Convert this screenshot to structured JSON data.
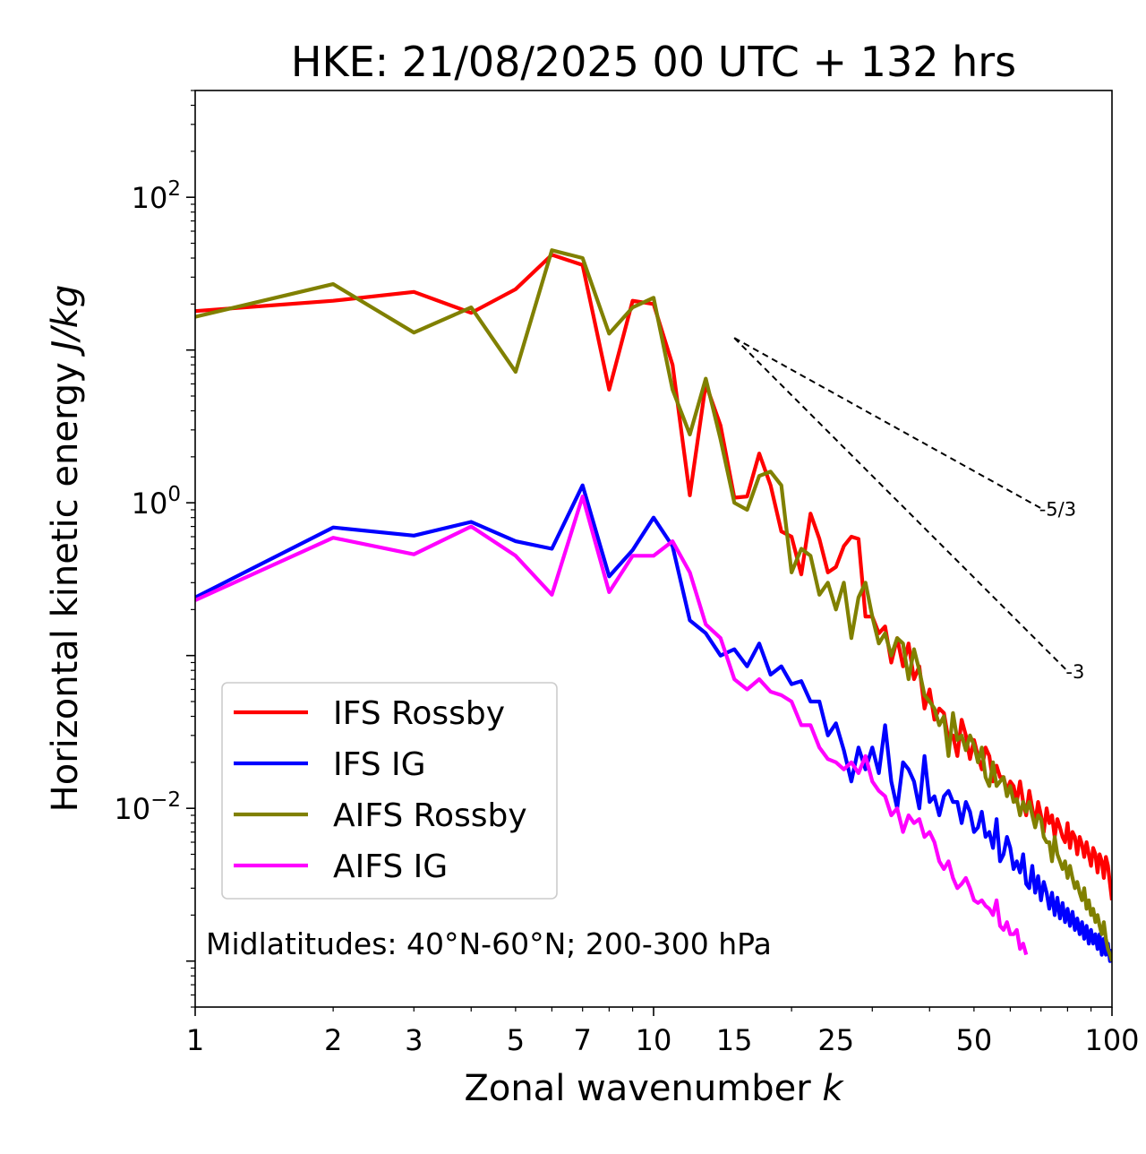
{
  "chart_data": {
    "type": "line",
    "title": "HKE: 21/08/2025 00 UTC + 132 hrs",
    "xlabel": "Zonal wavenumber",
    "xlabel_var": "k",
    "ylabel": "Horizontal kinetic energy",
    "ylabel_unit": "J/kg",
    "xscale": "log",
    "yscale": "log",
    "xlim": [
      1,
      100
    ],
    "ylim": [
      0.0005,
      500
    ],
    "x_ticks": [
      1,
      2,
      3,
      5,
      7,
      10,
      15,
      25,
      50,
      100
    ],
    "x_tick_labels": [
      "1",
      "2",
      "3",
      "5",
      "7",
      "10",
      "15",
      "25",
      "50",
      "100"
    ],
    "y_ticks": [
      {
        "value": 100,
        "base": "10",
        "exp": "2"
      },
      {
        "value": 1,
        "base": "10",
        "exp": "0"
      },
      {
        "value": 0.01,
        "base": "10",
        "exp": "−2"
      }
    ],
    "legend_position": "lower-left",
    "annotation": "Midlatitudes: 40°N-60°N; 200-300 hPa",
    "reference_slopes": [
      {
        "label": "-5/3",
        "slope": -1.6667,
        "x": [
          15,
          70
        ],
        "y0": 12
      },
      {
        "label": "-3",
        "slope": -3,
        "x": [
          15,
          80
        ],
        "y0": 12
      }
    ],
    "series": [
      {
        "name": "IFS Rossby",
        "color": "#ff0000",
        "x": [
          1,
          2,
          3,
          4,
          5,
          6,
          7,
          8,
          9,
          10,
          11,
          12,
          13,
          14,
          15,
          16,
          17,
          18,
          19,
          20,
          21,
          22,
          23,
          24,
          25,
          26,
          27,
          28,
          29,
          30,
          31,
          32,
          33,
          34,
          35,
          36,
          37,
          38,
          39,
          40,
          41,
          42,
          43,
          44,
          45,
          46,
          47,
          48,
          49,
          50,
          51,
          52,
          53,
          54,
          55,
          56,
          57,
          58,
          59,
          60,
          61,
          62,
          63,
          64,
          65,
          66,
          67,
          68,
          69,
          70,
          71,
          72,
          73,
          74,
          75,
          76,
          77,
          78,
          79,
          80,
          81,
          82,
          83,
          84,
          85,
          86,
          87,
          88,
          89,
          90,
          91,
          92,
          93,
          94,
          95,
          96,
          97,
          98,
          99,
          100
        ],
        "values": [
          18,
          21,
          24,
          17.5,
          25,
          42,
          36,
          5.5,
          21,
          20,
          8,
          1.12,
          6,
          3.2,
          1.08,
          1.1,
          2.1,
          1.3,
          0.65,
          0.6,
          0.34,
          0.85,
          0.58,
          0.35,
          0.38,
          0.52,
          0.6,
          0.58,
          0.18,
          0.18,
          0.14,
          0.155,
          0.09,
          0.13,
          0.085,
          0.12,
          0.07,
          0.085,
          0.045,
          0.06,
          0.038,
          0.045,
          0.042,
          0.028,
          0.03,
          0.022,
          0.038,
          0.03,
          0.021,
          0.028,
          0.022,
          0.018,
          0.025,
          0.022,
          0.015,
          0.019,
          0.016,
          0.016,
          0.013,
          0.015,
          0.014,
          0.011,
          0.015,
          0.011,
          0.009,
          0.013,
          0.01,
          0.008,
          0.011,
          0.009,
          0.007,
          0.01,
          0.008,
          0.009,
          0.0065,
          0.0085,
          0.0075,
          0.0065,
          0.006,
          0.008,
          0.0055,
          0.007,
          0.0065,
          0.005,
          0.0065,
          0.0058,
          0.0048,
          0.006,
          0.005,
          0.0042,
          0.0055,
          0.005,
          0.0038,
          0.005,
          0.0045,
          0.0035,
          0.0048,
          0.0042,
          0.0032,
          0.0025
        ]
      },
      {
        "name": "IFS IG",
        "color": "#0000ff",
        "x": [
          1,
          2,
          3,
          4,
          5,
          6,
          7,
          8,
          9,
          10,
          11,
          12,
          13,
          14,
          15,
          16,
          17,
          18,
          19,
          20,
          21,
          22,
          23,
          24,
          25,
          26,
          27,
          28,
          29,
          30,
          31,
          32,
          33,
          34,
          35,
          36,
          37,
          38,
          39,
          40,
          41,
          42,
          43,
          44,
          45,
          46,
          47,
          48,
          49,
          50,
          51,
          52,
          53,
          54,
          55,
          56,
          57,
          58,
          59,
          60,
          61,
          62,
          63,
          64,
          65,
          66,
          67,
          68,
          69,
          70,
          71,
          72,
          73,
          74,
          75,
          76,
          77,
          78,
          79,
          80,
          81,
          82,
          83,
          84,
          85,
          86,
          87,
          88,
          89,
          90,
          91,
          92,
          93,
          94,
          95,
          96,
          97,
          98,
          99,
          100
        ],
        "values": [
          0.24,
          0.69,
          0.61,
          0.75,
          0.56,
          0.5,
          1.3,
          0.33,
          0.49,
          0.8,
          0.52,
          0.17,
          0.14,
          0.1,
          0.11,
          0.085,
          0.12,
          0.075,
          0.085,
          0.065,
          0.068,
          0.05,
          0.05,
          0.03,
          0.036,
          0.024,
          0.015,
          0.025,
          0.018,
          0.025,
          0.017,
          0.035,
          0.015,
          0.01,
          0.02,
          0.018,
          0.015,
          0.01,
          0.022,
          0.011,
          0.012,
          0.009,
          0.012,
          0.013,
          0.011,
          0.011,
          0.008,
          0.011,
          0.0095,
          0.007,
          0.0075,
          0.0095,
          0.0065,
          0.007,
          0.0055,
          0.0085,
          0.0045,
          0.005,
          0.0065,
          0.0055,
          0.004,
          0.0045,
          0.0038,
          0.005,
          0.0032,
          0.003,
          0.0042,
          0.0028,
          0.0036,
          0.0025,
          0.0033,
          0.0028,
          0.0022,
          0.0028,
          0.002,
          0.0026,
          0.0019,
          0.0024,
          0.0018,
          0.0022,
          0.0017,
          0.0021,
          0.0016,
          0.0019,
          0.0015,
          0.0018,
          0.0014,
          0.0017,
          0.0013,
          0.0016,
          0.0013,
          0.0015,
          0.0012,
          0.0015,
          0.0011,
          0.0014,
          0.0011,
          0.0013,
          0.001,
          0.0012
        ]
      },
      {
        "name": "AIFS Rossby",
        "color": "#808000",
        "x": [
          1,
          2,
          3,
          4,
          5,
          6,
          7,
          8,
          9,
          10,
          11,
          12,
          13,
          14,
          15,
          16,
          17,
          18,
          19,
          20,
          21,
          22,
          23,
          24,
          25,
          26,
          27,
          28,
          29,
          30,
          31,
          32,
          33,
          34,
          35,
          36,
          37,
          38,
          39,
          40,
          41,
          42,
          43,
          44,
          45,
          46,
          47,
          48,
          49,
          50,
          51,
          52,
          53,
          54,
          55,
          56,
          57,
          58,
          59,
          60,
          61,
          62,
          63,
          64,
          65,
          66,
          67,
          68,
          69,
          70,
          71,
          72,
          73,
          74,
          75,
          76,
          77,
          78,
          79,
          80,
          81,
          82,
          83,
          84,
          85,
          86,
          87,
          88,
          89,
          90,
          91,
          92,
          93,
          94,
          95,
          96,
          97,
          98,
          99,
          100
        ],
        "values": [
          16.5,
          27,
          13,
          19,
          7.2,
          45,
          40,
          12.8,
          19,
          22,
          5.5,
          2.8,
          6.5,
          2.6,
          1.0,
          0.9,
          1.5,
          1.6,
          1.3,
          0.35,
          0.5,
          0.45,
          0.25,
          0.3,
          0.2,
          0.3,
          0.13,
          0.24,
          0.3,
          0.18,
          0.12,
          0.14,
          0.1,
          0.13,
          0.12,
          0.07,
          0.11,
          0.08,
          0.055,
          0.05,
          0.045,
          0.035,
          0.04,
          0.022,
          0.042,
          0.028,
          0.03,
          0.024,
          0.03,
          0.026,
          0.02,
          0.025,
          0.016,
          0.014,
          0.02,
          0.014,
          0.015,
          0.016,
          0.012,
          0.014,
          0.011,
          0.0115,
          0.009,
          0.011,
          0.0095,
          0.011,
          0.009,
          0.0075,
          0.009,
          0.0085,
          0.0065,
          0.006,
          0.006,
          0.0045,
          0.0065,
          0.005,
          0.0045,
          0.004,
          0.0045,
          0.0035,
          0.0042,
          0.0035,
          0.003,
          0.0033,
          0.0028,
          0.0025,
          0.003,
          0.0022,
          0.0025,
          0.002,
          0.0022,
          0.0018,
          0.002,
          0.0017,
          0.0015,
          0.0018,
          0.0014,
          0.0012,
          0.0011,
          0.001
        ]
      },
      {
        "name": "AIFS IG",
        "color": "#ff00ff",
        "x": [
          1,
          2,
          3,
          4,
          5,
          6,
          7,
          8,
          9,
          10,
          11,
          12,
          13,
          14,
          15,
          16,
          17,
          18,
          19,
          20,
          21,
          22,
          23,
          24,
          25,
          26,
          27,
          28,
          29,
          30,
          31,
          32,
          33,
          34,
          35,
          36,
          37,
          38,
          39,
          40,
          41,
          42,
          43,
          44,
          45,
          46,
          47,
          48,
          49,
          50,
          51,
          52,
          53,
          54,
          55,
          56,
          57,
          58,
          59,
          60,
          61,
          62,
          63,
          64,
          65
        ],
        "values": [
          0.23,
          0.59,
          0.46,
          0.7,
          0.45,
          0.25,
          1.1,
          0.26,
          0.45,
          0.45,
          0.56,
          0.35,
          0.16,
          0.13,
          0.07,
          0.06,
          0.07,
          0.058,
          0.055,
          0.05,
          0.035,
          0.035,
          0.025,
          0.021,
          0.02,
          0.018,
          0.02,
          0.017,
          0.022,
          0.015,
          0.013,
          0.012,
          0.009,
          0.01,
          0.007,
          0.009,
          0.008,
          0.0085,
          0.0065,
          0.007,
          0.006,
          0.0045,
          0.004,
          0.0045,
          0.0035,
          0.003,
          0.0032,
          0.0035,
          0.003,
          0.0025,
          0.0024,
          0.0025,
          0.0023,
          0.0022,
          0.002,
          0.0025,
          0.0017,
          0.0016,
          0.0018,
          0.0015,
          0.0015,
          0.0016,
          0.0012,
          0.0013,
          0.0011
        ]
      }
    ]
  }
}
